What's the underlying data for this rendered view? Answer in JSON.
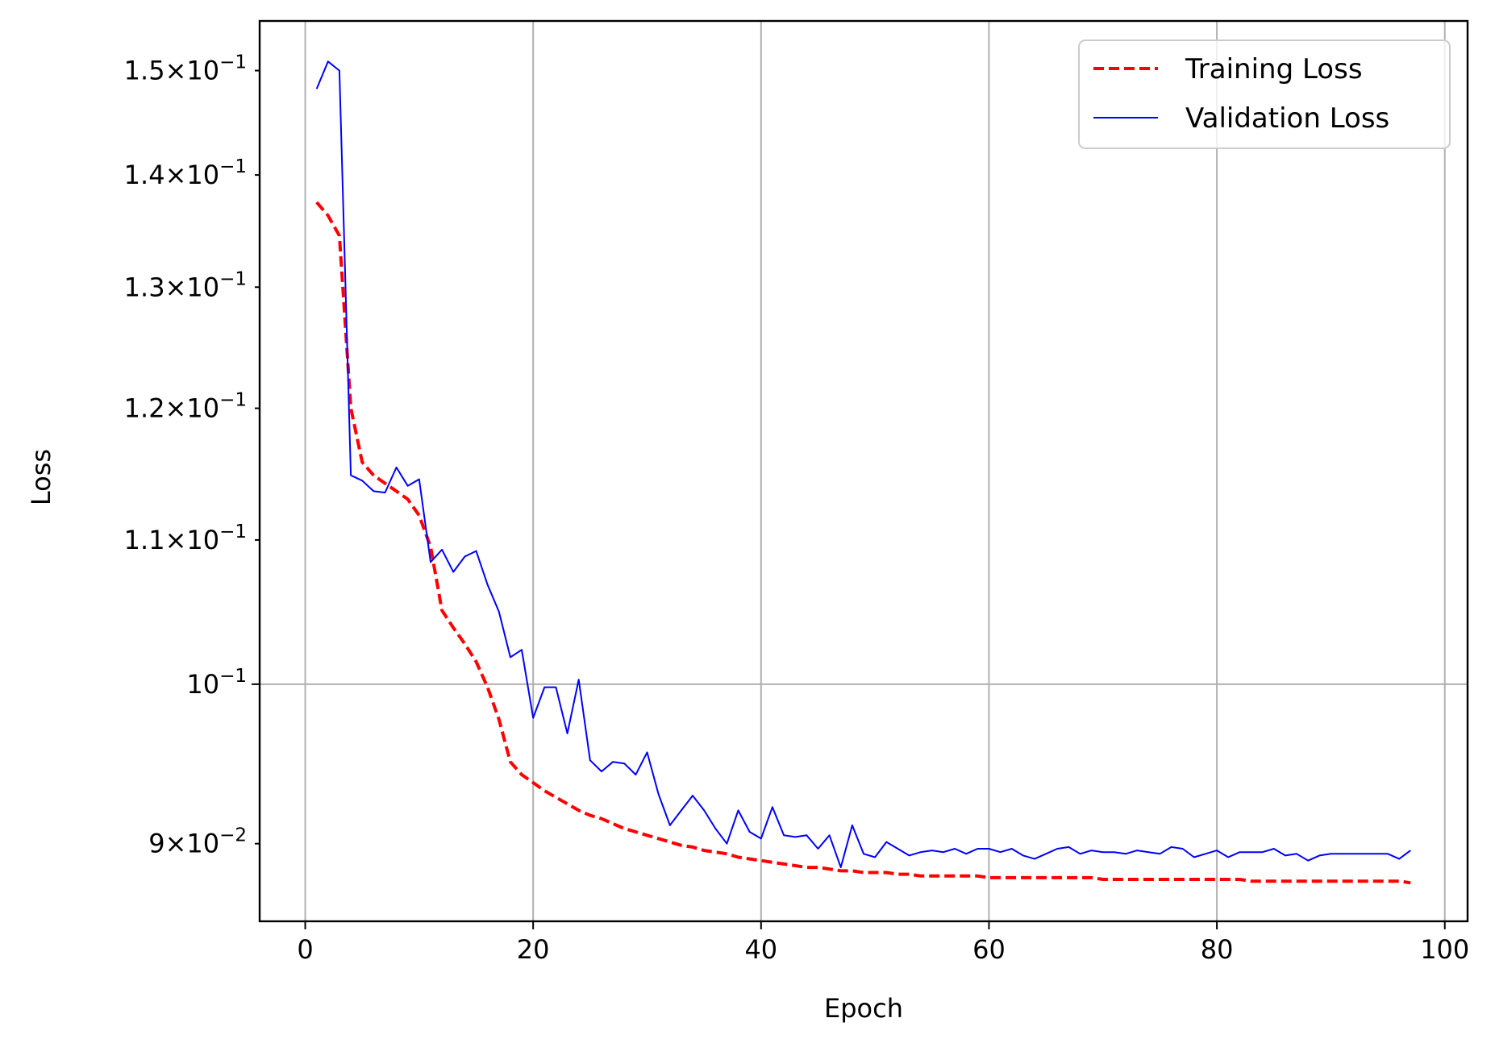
{
  "chart_data": {
    "type": "line",
    "xlabel": "Epoch",
    "ylabel": "Loss",
    "xlim": [
      -4,
      102
    ],
    "ylim": [
      0.0855,
      0.155
    ],
    "yscale": "log",
    "grid": true,
    "legend_position": "top-right",
    "x_ticks": [
      {
        "value": 0,
        "label": "0"
      },
      {
        "value": 20,
        "label": "20"
      },
      {
        "value": 40,
        "label": "40"
      },
      {
        "value": 60,
        "label": "60"
      },
      {
        "value": 80,
        "label": "80"
      },
      {
        "value": 100,
        "label": "100"
      }
    ],
    "y_ticks": [
      {
        "value": 0.09,
        "mantissa": "9×10",
        "exponent": "−2"
      },
      {
        "value": 0.1,
        "mantissa": "10",
        "exponent": "−1"
      },
      {
        "value": 0.11,
        "mantissa": "1.1×10",
        "exponent": "−1"
      },
      {
        "value": 0.12,
        "mantissa": "1.2×10",
        "exponent": "−1"
      },
      {
        "value": 0.13,
        "mantissa": "1.3×10",
        "exponent": "−1"
      },
      {
        "value": 0.14,
        "mantissa": "1.4×10",
        "exponent": "−1"
      },
      {
        "value": 0.15,
        "mantissa": "1.5×10",
        "exponent": "−1"
      }
    ],
    "series": [
      {
        "name": "Training Loss",
        "color": "#ff0000",
        "style": "dashed",
        "x": [
          1,
          2,
          3,
          4,
          5,
          6,
          7,
          8,
          9,
          10,
          11,
          12,
          13,
          14,
          15,
          16,
          17,
          18,
          19,
          20,
          21,
          22,
          23,
          24,
          25,
          26,
          27,
          28,
          29,
          30,
          31,
          32,
          33,
          34,
          35,
          36,
          37,
          38,
          39,
          40,
          41,
          42,
          43,
          44,
          45,
          46,
          47,
          48,
          49,
          50,
          51,
          52,
          53,
          54,
          55,
          56,
          57,
          58,
          59,
          60,
          61,
          62,
          63,
          64,
          65,
          66,
          67,
          68,
          69,
          70,
          71,
          72,
          73,
          74,
          75,
          76,
          77,
          78,
          79,
          80,
          81,
          82,
          83,
          84,
          85,
          86,
          87,
          88,
          89,
          90,
          91,
          92,
          93,
          94,
          95,
          96,
          97
        ],
        "values": [
          0.1375,
          0.1363,
          0.1345,
          0.12,
          0.1158,
          0.1148,
          0.1142,
          0.1136,
          0.113,
          0.1118,
          0.1095,
          0.105,
          0.1038,
          0.1027,
          0.1015,
          0.0998,
          0.0977,
          0.095,
          0.0942,
          0.0937,
          0.0932,
          0.0928,
          0.0924,
          0.092,
          0.0917,
          0.0915,
          0.0912,
          0.0909,
          0.0907,
          0.0905,
          0.0903,
          0.0901,
          0.0899,
          0.0898,
          0.0896,
          0.0895,
          0.0894,
          0.0892,
          0.0891,
          0.089,
          0.0889,
          0.0888,
          0.0887,
          0.0886,
          0.0886,
          0.0885,
          0.0884,
          0.0884,
          0.0883,
          0.0883,
          0.0883,
          0.0882,
          0.0882,
          0.0881,
          0.0881,
          0.0881,
          0.0881,
          0.0881,
          0.0881,
          0.088,
          0.088,
          0.088,
          0.088,
          0.088,
          0.088,
          0.088,
          0.088,
          0.088,
          0.088,
          0.0879,
          0.0879,
          0.0879,
          0.0879,
          0.0879,
          0.0879,
          0.0879,
          0.0879,
          0.0879,
          0.0879,
          0.0879,
          0.0879,
          0.0879,
          0.0878,
          0.0878,
          0.0878,
          0.0878,
          0.0878,
          0.0878,
          0.0878,
          0.0878,
          0.0878,
          0.0878,
          0.0878,
          0.0878,
          0.0878,
          0.0878,
          0.0877
        ]
      },
      {
        "name": "Validation Loss",
        "color": "#0000ff",
        "style": "solid",
        "x": [
          1,
          2,
          3,
          4,
          5,
          6,
          7,
          8,
          9,
          10,
          11,
          12,
          13,
          14,
          15,
          16,
          17,
          18,
          19,
          20,
          21,
          22,
          23,
          24,
          25,
          26,
          27,
          28,
          29,
          30,
          31,
          32,
          33,
          34,
          35,
          36,
          37,
          38,
          39,
          40,
          41,
          42,
          43,
          44,
          45,
          46,
          47,
          48,
          49,
          50,
          51,
          52,
          53,
          54,
          55,
          56,
          57,
          58,
          59,
          60,
          61,
          62,
          63,
          64,
          65,
          66,
          67,
          68,
          69,
          70,
          71,
          72,
          73,
          74,
          75,
          76,
          77,
          78,
          79,
          80,
          81,
          82,
          83,
          84,
          85,
          86,
          87,
          88,
          89,
          90,
          91,
          92,
          93,
          94,
          95,
          96,
          97
        ],
        "values": [
          0.1482,
          0.1509,
          0.15,
          0.1148,
          0.1144,
          0.1136,
          0.1135,
          0.1154,
          0.114,
          0.1145,
          0.1084,
          0.1093,
          0.1077,
          0.1088,
          0.1092,
          0.1068,
          0.1049,
          0.1018,
          0.1023,
          0.0978,
          0.0998,
          0.0998,
          0.0968,
          0.1003,
          0.0951,
          0.0944,
          0.095,
          0.0949,
          0.0942,
          0.0956,
          0.093,
          0.0911,
          0.092,
          0.0929,
          0.092,
          0.0909,
          0.09,
          0.092,
          0.0907,
          0.0903,
          0.0922,
          0.0905,
          0.0904,
          0.0905,
          0.0897,
          0.0905,
          0.0886,
          0.0911,
          0.0894,
          0.0892,
          0.0901,
          0.0897,
          0.0893,
          0.0895,
          0.0896,
          0.0895,
          0.0897,
          0.0894,
          0.0897,
          0.0897,
          0.0895,
          0.0897,
          0.0893,
          0.0891,
          0.0894,
          0.0897,
          0.0898,
          0.0894,
          0.0896,
          0.0895,
          0.0895,
          0.0894,
          0.0896,
          0.0895,
          0.0894,
          0.0898,
          0.0897,
          0.0892,
          0.0894,
          0.0896,
          0.0892,
          0.0895,
          0.0895,
          0.0895,
          0.0897,
          0.0893,
          0.0894,
          0.089,
          0.0893,
          0.0894,
          0.0894,
          0.0894,
          0.0894,
          0.0894,
          0.0894,
          0.0891,
          0.0896
        ]
      }
    ]
  }
}
